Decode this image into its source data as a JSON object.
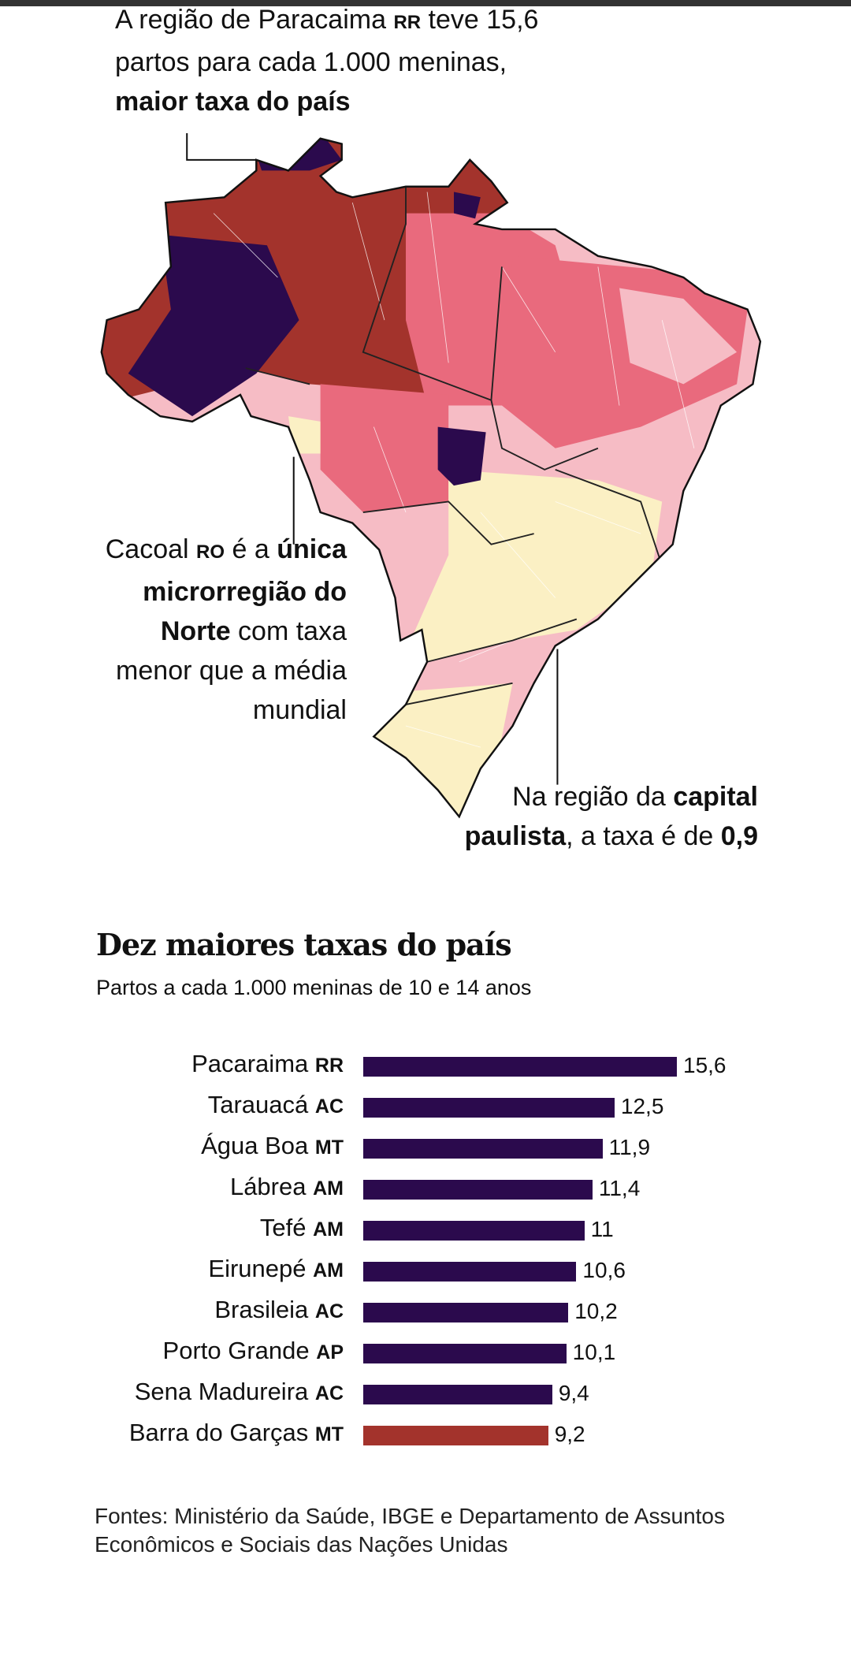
{
  "annotations": {
    "paracaima": {
      "t1": "A região de Paracaima ",
      "uf": "RR",
      "t2": " teve 15,6 partos para cada 1.000 meninas, ",
      "bold": "maior taxa do país"
    },
    "cacoal": {
      "t1": "Cacoal ",
      "uf": "RO",
      "t2": " é a ",
      "bold": "única microrregião do Norte",
      "t3": " com taxa menor que a média mundial"
    },
    "sp": {
      "t1": "Na região da ",
      "bold": "capital paulista",
      "t2": ", a taxa é de ",
      "bold2": "0,9"
    }
  },
  "colors": {
    "darkpurple": "#2b0a4d",
    "darkred": "#a3332c",
    "pink": "#e96a7d",
    "lightpink": "#f6bcc5",
    "cream": "#fbf0c4"
  },
  "chart_data": {
    "type": "bar",
    "title": "Dez maiores taxas do país",
    "subtitle": "Partos a cada 1.000 meninas de 10 e 14 anos",
    "categories": [
      "Pacaraima",
      "Tarauacá",
      "Água Boa",
      "Lábrea",
      "Tefé",
      "Eirunepé",
      "Brasileia",
      "Porto Grande",
      "Sena Madureira",
      "Barra do Garças"
    ],
    "states": [
      "RR",
      "AC",
      "MT",
      "AM",
      "AM",
      "AM",
      "AC",
      "AP",
      "AC",
      "MT"
    ],
    "values": [
      15.6,
      12.5,
      11.9,
      11.4,
      11,
      10.6,
      10.2,
      10.1,
      9.4,
      9.2
    ],
    "value_labels": [
      "15,6",
      "12,5",
      "11,9",
      "11,4",
      "11",
      "10,6",
      "10,2",
      "10,1",
      "9,4",
      "9,2"
    ],
    "bar_colors": [
      "#2b0a4d",
      "#2b0a4d",
      "#2b0a4d",
      "#2b0a4d",
      "#2b0a4d",
      "#2b0a4d",
      "#2b0a4d",
      "#2b0a4d",
      "#2b0a4d",
      "#a3332c"
    ],
    "xlim": [
      0,
      15.6
    ]
  },
  "footer": "Fontes: Ministério da Saúde, IBGE e Departamento de Assuntos Econômicos e Sociais das Nações Unidas"
}
